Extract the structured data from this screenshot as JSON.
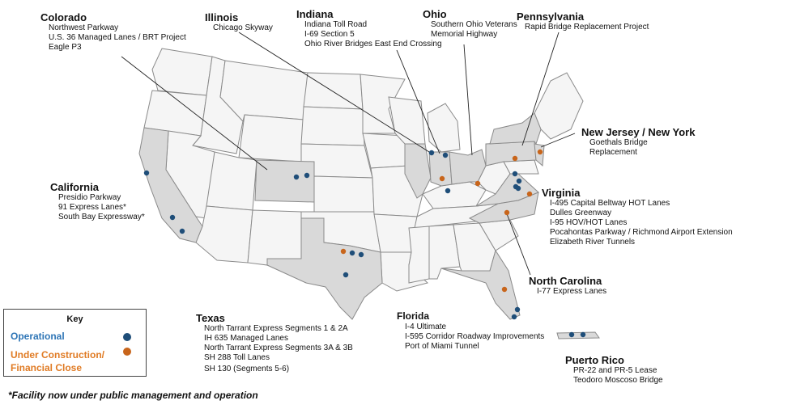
{
  "map": {
    "region": "United States"
  },
  "key": {
    "title": "Key",
    "operational": "Operational",
    "under_construction": "Under Construction/ Financial Close",
    "colors": {
      "operational": "#1f4e79",
      "under_construction": "#c8651b"
    }
  },
  "footnote": "*Facility now under public management and operation",
  "states": [
    {
      "name": "Colorado",
      "projects": [
        "Northwest Parkway",
        "U.S. 36 Managed Lanes / BRT Project",
        "Eagle P3"
      ]
    },
    {
      "name": "Illinois",
      "projects": [
        "Chicago Skyway"
      ]
    },
    {
      "name": "Indiana",
      "projects": [
        "Indiana Toll Road",
        "I-69 Section 5",
        "Ohio River Bridges East End Crossing"
      ]
    },
    {
      "name": "Ohio",
      "projects": [
        "Southern Ohio Veterans",
        "Memorial Highway"
      ]
    },
    {
      "name": "Pennsylvania",
      "projects": [
        "Rapid Bridge Replacement Project"
      ]
    },
    {
      "name": "New Jersey / New York",
      "projects": [
        "Goethals Bridge",
        "Replacement"
      ]
    },
    {
      "name": "California",
      "projects": [
        "Presidio Parkway",
        "91 Express Lanes*",
        "South Bay Expressway*"
      ]
    },
    {
      "name": "Virginia",
      "projects": [
        "I-495 Capital Beltway HOT Lanes",
        "Dulles Greenway",
        "I-95 HOV/HOT Lanes",
        "Pocahontas Parkway / Richmond Airport Extension",
        "Elizabeth River Tunnels"
      ]
    },
    {
      "name": "North Carolina",
      "projects": [
        "I-77 Express Lanes"
      ]
    },
    {
      "name": "Texas",
      "projects": [
        "North Tarrant Express Segments 1 & 2A",
        "IH 635 Managed Lanes",
        "North Tarrant Express Segments 3A & 3B",
        "SH 288 Toll Lanes",
        "SH 130 (Segments 5-6)"
      ]
    },
    {
      "name": "Florida",
      "projects": [
        "I-4 Ultimate",
        "I-595 Corridor Roadway Improvements",
        "Port of Miami Tunnel"
      ]
    },
    {
      "name": "Puerto Rico",
      "projects": [
        "PR-22 and PR-5 Lease",
        "Teodoro Moscoso Bridge"
      ]
    }
  ]
}
